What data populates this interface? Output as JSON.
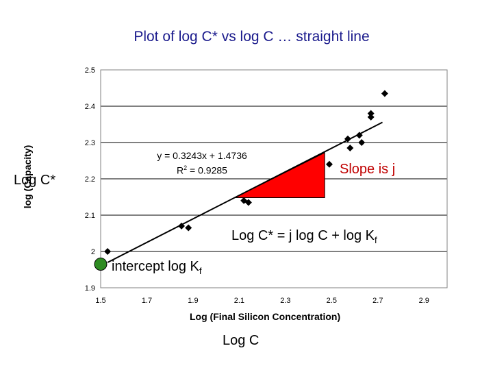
{
  "page_title": "Plot of log C* vs log C … straight line",
  "outer_ylabel": "Log C*",
  "outer_xlabel": "Log C",
  "annotations": {
    "slope": "Slope is j",
    "equation_prefix": "Log C* = j log C + log K",
    "equation_sub": "f",
    "intercept_prefix": "intercept log K",
    "intercept_sub": "f"
  },
  "trendline_equation": "y = 0.3243x + 1.4736",
  "r_squared_prefix": "R",
  "r_squared_sup": "2",
  "r_squared_value": " = 0.9285",
  "colors": {
    "title": "#1a1a8c",
    "triangle": "#ff0000",
    "intercept_marker": "#2e8b22",
    "slope_text": "#c00000",
    "points": "#000000"
  },
  "chart_data": {
    "type": "scatter",
    "xlabel": "Log (Final Silicon Concentration)",
    "ylabel": "log (Capacity)",
    "xlim": [
      1.5,
      3.0
    ],
    "ylim": [
      1.9,
      2.5
    ],
    "xticks": [
      "1.5",
      "1.7",
      "1.9",
      "2.1",
      "2.3",
      "2.5",
      "2.7",
      "2.9"
    ],
    "yticks": [
      "1.9",
      "2",
      "2.1",
      "2.2",
      "2.3",
      "2.4",
      "2.5"
    ],
    "grid": "horizontal",
    "points": [
      {
        "x": 1.53,
        "y": 2.0
      },
      {
        "x": 1.85,
        "y": 2.07
      },
      {
        "x": 1.88,
        "y": 2.065
      },
      {
        "x": 2.12,
        "y": 2.14
      },
      {
        "x": 2.14,
        "y": 2.135
      },
      {
        "x": 2.49,
        "y": 2.24
      },
      {
        "x": 2.57,
        "y": 2.31
      },
      {
        "x": 2.58,
        "y": 2.285
      },
      {
        "x": 2.62,
        "y": 2.32
      },
      {
        "x": 2.63,
        "y": 2.3
      },
      {
        "x": 2.67,
        "y": 2.38
      },
      {
        "x": 2.67,
        "y": 2.37
      },
      {
        "x": 2.73,
        "y": 2.435
      }
    ],
    "trendline": {
      "slope": 0.3243,
      "intercept": 1.4736,
      "x_range": [
        1.53,
        2.72
      ]
    },
    "slope_triangle": [
      {
        "x": 2.08,
        "y": 2.148
      },
      {
        "x": 2.47,
        "y": 2.148
      },
      {
        "x": 2.47,
        "y": 2.272
      }
    ],
    "intercept_marker": {
      "x": 1.5,
      "y": 1.965
    }
  }
}
